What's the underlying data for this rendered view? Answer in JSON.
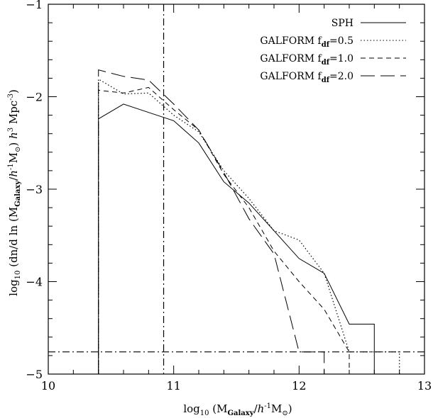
{
  "chart_data": {
    "type": "line",
    "xlabel": "log10 (MGalaxy/h-1M⊙)",
    "ylabel": "log10 (dn/d ln (MGalaxy/h-1M⊙) h3 Mpc-3)",
    "xlim": [
      10,
      13
    ],
    "ylim": [
      -5,
      -1
    ],
    "x_ticks": [
      "10",
      "11",
      "12",
      "13"
    ],
    "y_ticks": [
      "-5",
      "-4",
      "-3",
      "-2",
      "-1"
    ],
    "grid": false,
    "legend_position": "top-right",
    "reference_lines": {
      "vertical_x": 10.92,
      "horizontal_y": -4.76,
      "style": "dash-dot"
    },
    "series": [
      {
        "name": "SPH",
        "style": "solid",
        "x": [
          10.4,
          10.6,
          10.8,
          11.0,
          11.2,
          11.4,
          11.6,
          11.8,
          12.0,
          12.2,
          12.4,
          12.6
        ],
        "y": [
          -2.24,
          -2.08,
          -2.17,
          -2.26,
          -2.5,
          -2.92,
          -3.15,
          -3.45,
          -3.75,
          -3.91,
          -4.46,
          -4.46
        ]
      },
      {
        "name": "GALFORM fdf=0.5",
        "style": "dotted",
        "x": [
          10.4,
          10.6,
          10.8,
          11.0,
          11.2,
          11.4,
          11.6,
          11.8,
          12.0,
          12.2,
          12.4,
          12.6,
          12.8
        ],
        "y": [
          -1.81,
          -1.97,
          -1.96,
          -2.2,
          -2.38,
          -2.8,
          -3.1,
          -3.45,
          -3.55,
          -3.91,
          -4.76,
          -4.76,
          -4.76
        ]
      },
      {
        "name": "GALFORM fdf=1.0",
        "style": "dashed",
        "x": [
          10.4,
          10.6,
          10.8,
          11.0,
          11.2,
          11.4,
          11.6,
          11.8,
          12.0,
          12.2,
          12.4
        ],
        "y": [
          -1.93,
          -1.96,
          -1.9,
          -2.14,
          -2.36,
          -2.84,
          -3.2,
          -3.67,
          -4.0,
          -4.3,
          -4.76
        ]
      },
      {
        "name": "GALFORM fdf=2.0",
        "style": "long-dashed",
        "x": [
          10.4,
          10.6,
          10.8,
          11.0,
          11.2,
          11.4,
          11.6,
          11.8,
          12.0,
          12.2
        ],
        "y": [
          -1.71,
          -1.78,
          -1.82,
          -2.08,
          -2.36,
          -2.82,
          -3.32,
          -3.7,
          -4.76,
          -4.76
        ]
      }
    ]
  }
}
